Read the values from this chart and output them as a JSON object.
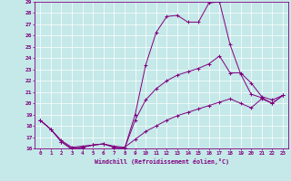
{
  "xlabel": "Windchill (Refroidissement éolien,°C)",
  "background_color": "#c5e8e8",
  "grid_color": "#ffffff",
  "line_color": "#800080",
  "xlim": [
    -0.5,
    23.5
  ],
  "ylim": [
    16,
    29
  ],
  "yticks": [
    16,
    17,
    18,
    19,
    20,
    21,
    22,
    23,
    24,
    25,
    26,
    27,
    28,
    29
  ],
  "xticks": [
    0,
    1,
    2,
    3,
    4,
    5,
    6,
    7,
    8,
    9,
    10,
    11,
    12,
    13,
    14,
    15,
    16,
    17,
    18,
    19,
    20,
    21,
    22,
    23
  ],
  "series": [
    {
      "x": [
        0,
        1,
        2,
        3,
        4,
        5,
        6,
        7,
        8,
        9,
        10,
        11,
        12,
        13,
        14,
        15,
        16,
        17,
        18,
        19,
        20,
        21,
        22,
        23
      ],
      "y": [
        18.5,
        17.7,
        16.6,
        15.9,
        16.1,
        16.3,
        16.4,
        16.1,
        16.0,
        19.0,
        23.4,
        26.3,
        27.7,
        27.8,
        27.2,
        27.2,
        28.9,
        29.0,
        25.2,
        22.6,
        20.8,
        20.5,
        20.0,
        20.7
      ]
    },
    {
      "x": [
        0,
        1,
        2,
        3,
        4,
        5,
        6,
        7,
        8,
        9,
        10,
        11,
        12,
        13,
        14,
        15,
        16,
        17,
        18,
        19,
        20,
        21,
        22,
        23
      ],
      "y": [
        18.5,
        17.7,
        16.6,
        16.0,
        16.1,
        16.3,
        16.4,
        16.1,
        16.0,
        18.5,
        20.3,
        21.3,
        22.0,
        22.5,
        22.8,
        23.1,
        23.5,
        24.2,
        22.7,
        22.7,
        21.8,
        20.6,
        20.3,
        20.7
      ]
    },
    {
      "x": [
        0,
        1,
        2,
        3,
        4,
        5,
        6,
        7,
        8,
        9,
        10,
        11,
        12,
        13,
        14,
        15,
        16,
        17,
        18,
        19,
        20,
        21,
        22,
        23
      ],
      "y": [
        18.5,
        17.7,
        16.7,
        16.1,
        16.2,
        16.3,
        16.4,
        16.2,
        16.1,
        16.8,
        17.5,
        18.0,
        18.5,
        18.9,
        19.2,
        19.5,
        19.8,
        20.1,
        20.4,
        20.0,
        19.6,
        20.4,
        20.0,
        20.7
      ]
    }
  ]
}
